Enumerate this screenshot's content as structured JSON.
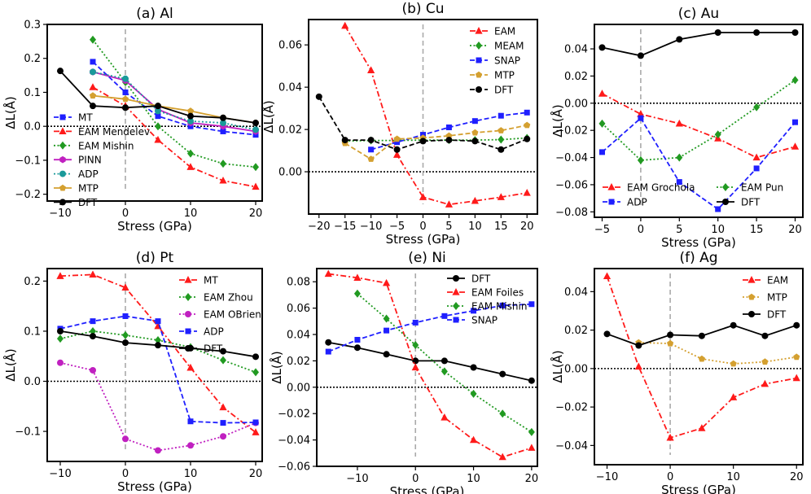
{
  "chart_data": [
    {
      "type": "line",
      "title": "(a) Al",
      "xlabel": "Stress (GPa)",
      "ylabel": "ΔL(Å)",
      "xlim": [
        -12,
        21
      ],
      "ylim": [
        -0.22,
        0.3
      ],
      "xticks": [
        -10,
        0,
        10,
        20
      ],
      "xtick_labels": [
        "−10",
        "0",
        "10",
        "20"
      ],
      "yticks": [
        -0.2,
        -0.1,
        0.0,
        0.1,
        0.2,
        0.3
      ],
      "ytick_labels": [
        "−0.2",
        "−0.1",
        "0.0",
        "0.1",
        "0.2",
        "0.3"
      ],
      "legend_position": "lower-left",
      "series": [
        {
          "name": "MT",
          "color": "#1f1fff",
          "marker": "square",
          "dash": "dash",
          "x": [
            -5,
            0,
            5,
            10,
            15,
            20
          ],
          "y": [
            0.19,
            0.1,
            0.03,
            0.0,
            -0.015,
            -0.025
          ]
        },
        {
          "name": "EAM Mendelev",
          "color": "#ff1a1a",
          "marker": "triangle",
          "dash": "dashdot",
          "x": [
            -5,
            0,
            5,
            10,
            15,
            20
          ],
          "y": [
            0.115,
            0.06,
            -0.04,
            -0.12,
            -0.16,
            -0.178
          ]
        },
        {
          "name": "EAM Mishin",
          "color": "#219a21",
          "marker": "diamond",
          "dash": "dot",
          "x": [
            -5,
            0,
            5,
            10,
            15,
            20
          ],
          "y": [
            0.255,
            0.13,
            0.0,
            -0.08,
            -0.11,
            -0.12
          ]
        },
        {
          "name": "PINN",
          "color": "#c020c0",
          "marker": "hexagon",
          "dash": "solid",
          "x": [
            -5,
            0,
            5,
            10,
            15,
            20
          ],
          "y": [
            0.16,
            0.135,
            0.05,
            0.01,
            0.0,
            -0.015
          ]
        },
        {
          "name": "ADP",
          "color": "#1a9a9a",
          "marker": "circle",
          "dash": "dot",
          "x": [
            -5,
            0,
            5,
            10,
            15,
            20
          ],
          "y": [
            0.16,
            0.14,
            0.045,
            0.015,
            0.01,
            -0.01
          ]
        },
        {
          "name": "MTP",
          "color": "#d4a030",
          "marker": "pentagon",
          "dash": "solid",
          "x": [
            -5,
            0,
            5,
            10,
            15,
            20
          ],
          "y": [
            0.09,
            0.08,
            0.06,
            0.045,
            0.025,
            0.01
          ]
        },
        {
          "name": "DFT",
          "color": "#000000",
          "marker": "circle",
          "dash": "solid",
          "x": [
            -10,
            -5,
            0,
            5,
            10,
            15,
            20
          ],
          "y": [
            0.163,
            0.06,
            0.055,
            0.06,
            0.03,
            0.025,
            0.01
          ]
        }
      ]
    },
    {
      "type": "line",
      "title": "(b) Cu",
      "xlabel": "Stress (GPa)",
      "ylabel": "ΔL(Å)",
      "xlim": [
        -22,
        22
      ],
      "ylim": [
        -0.02,
        0.072
      ],
      "xticks": [
        -20,
        -15,
        -10,
        -5,
        0,
        5,
        10,
        15,
        20
      ],
      "xtick_labels": [
        "−20",
        "−15",
        "−10",
        "−5",
        "0",
        "5",
        "10",
        "15",
        "20"
      ],
      "yticks": [
        0.0,
        0.02,
        0.04,
        0.06
      ],
      "ytick_labels": [
        "0.00",
        "0.02",
        "0.04",
        "0.06"
      ],
      "legend_position": "upper-right",
      "series": [
        {
          "name": "EAM",
          "color": "#ff1a1a",
          "marker": "triangle",
          "dash": "dashdot",
          "x": [
            -15,
            -10,
            -5,
            0,
            5,
            10,
            15,
            20
          ],
          "y": [
            0.069,
            0.048,
            0.008,
            -0.012,
            -0.0155,
            -0.0138,
            -0.012,
            -0.01
          ]
        },
        {
          "name": "MEAM",
          "color": "#219a21",
          "marker": "diamond",
          "dash": "dot",
          "x": [
            -15,
            -10,
            -5,
            0,
            5,
            10,
            15,
            20
          ],
          "y": [
            0.0145,
            0.0148,
            0.0148,
            0.015,
            0.015,
            0.015,
            0.0152,
            0.016
          ]
        },
        {
          "name": "SNAP",
          "color": "#1f1fff",
          "marker": "square",
          "dash": "dash",
          "x": [
            -10,
            -5,
            0,
            5,
            10,
            15,
            20
          ],
          "y": [
            0.0105,
            0.014,
            0.0175,
            0.021,
            0.024,
            0.0265,
            0.028
          ]
        },
        {
          "name": "MTP",
          "color": "#d4a030",
          "marker": "pentagon",
          "dash": "dash",
          "x": [
            -15,
            -10,
            -5,
            0,
            5,
            10,
            15,
            20
          ],
          "y": [
            0.0135,
            0.006,
            0.0155,
            0.016,
            0.017,
            0.0185,
            0.0195,
            0.022
          ]
        },
        {
          "name": "DFT",
          "color": "#000000",
          "marker": "circle",
          "dash": "dash",
          "x": [
            -20,
            -15,
            -10,
            -5,
            0,
            5,
            10,
            15,
            20
          ],
          "y": [
            0.0355,
            0.015,
            0.015,
            0.0105,
            0.0145,
            0.015,
            0.0145,
            0.0105,
            0.0155
          ]
        }
      ]
    },
    {
      "type": "line",
      "title": "(c) Au",
      "xlabel": "Stress (GPa)",
      "ylabel": "ΔL(Å)",
      "xlim": [
        -6,
        21
      ],
      "ylim": [
        -0.084,
        0.058
      ],
      "xticks": [
        -5,
        0,
        5,
        10,
        15,
        20
      ],
      "xtick_labels": [
        "−5",
        "0",
        "5",
        "10",
        "15",
        "20"
      ],
      "yticks": [
        -0.08,
        -0.06,
        -0.04,
        -0.02,
        0.0,
        0.02,
        0.04
      ],
      "ytick_labels": [
        "−0.08",
        "−0.06",
        "−0.04",
        "−0.02",
        "0.00",
        "0.02",
        "0.04"
      ],
      "legend_position": "lower-center",
      "series": [
        {
          "name": "EAM Grochola",
          "color": "#ff1a1a",
          "marker": "triangle",
          "dash": "dashdot",
          "x": [
            -5,
            0,
            5,
            10,
            15,
            20
          ],
          "y": [
            0.007,
            -0.008,
            -0.015,
            -0.026,
            -0.04,
            -0.032
          ]
        },
        {
          "name": "EAM Pun",
          "color": "#219a21",
          "marker": "diamond",
          "dash": "dot",
          "x": [
            -5,
            0,
            5,
            10,
            15,
            20
          ],
          "y": [
            -0.015,
            -0.042,
            -0.04,
            -0.023,
            -0.003,
            0.017
          ]
        },
        {
          "name": "ADP",
          "color": "#1f1fff",
          "marker": "square",
          "dash": "dash",
          "x": [
            -5,
            0,
            5,
            10,
            15,
            20
          ],
          "y": [
            -0.036,
            -0.011,
            -0.058,
            -0.078,
            -0.048,
            -0.014
          ]
        },
        {
          "name": "DFT",
          "color": "#000000",
          "marker": "circle",
          "dash": "solid",
          "x": [
            -5,
            0,
            5,
            10,
            15,
            20
          ],
          "y": [
            0.041,
            0.035,
            0.047,
            0.052,
            0.052,
            0.052
          ]
        }
      ]
    },
    {
      "type": "line",
      "title": "(d) Pt",
      "xlabel": "Stress (GPa)",
      "ylabel": "ΔL(Å)",
      "xlim": [
        -12,
        21
      ],
      "ylim": [
        -0.16,
        0.225
      ],
      "xticks": [
        -10,
        0,
        10,
        20
      ],
      "xtick_labels": [
        "−10",
        "0",
        "10",
        "20"
      ],
      "yticks": [
        -0.1,
        0.0,
        0.1,
        0.2
      ],
      "ytick_labels": [
        "−0.1",
        "0.0",
        "0.1",
        "0.2"
      ],
      "legend_position": "upper-right",
      "series": [
        {
          "name": "MT",
          "color": "#ff1a1a",
          "marker": "triangle",
          "dash": "dashdot",
          "x": [
            -10,
            -5,
            0,
            5,
            10,
            15,
            20
          ],
          "y": [
            0.21,
            0.213,
            0.187,
            0.11,
            0.027,
            -0.052,
            -0.102
          ]
        },
        {
          "name": "EAM Zhou",
          "color": "#219a21",
          "marker": "diamond",
          "dash": "dot",
          "x": [
            -10,
            -5,
            0,
            5,
            10,
            15,
            20
          ],
          "y": [
            0.085,
            0.1,
            0.092,
            0.082,
            0.068,
            0.042,
            0.018
          ]
        },
        {
          "name": "EAM OBrien",
          "color": "#c020c0",
          "marker": "circle",
          "dash": "dot",
          "x": [
            -10,
            -5,
            0,
            5,
            10,
            15,
            20
          ],
          "y": [
            0.037,
            0.022,
            -0.115,
            -0.138,
            -0.128,
            -0.11,
            -0.083
          ]
        },
        {
          "name": "ADP",
          "color": "#1f1fff",
          "marker": "square",
          "dash": "dash",
          "x": [
            -10,
            -5,
            0,
            5,
            10,
            15,
            20
          ],
          "y": [
            0.105,
            0.12,
            0.13,
            0.12,
            -0.08,
            -0.083,
            -0.082
          ]
        },
        {
          "name": "DFT",
          "color": "#000000",
          "marker": "circle",
          "dash": "solid",
          "x": [
            -10,
            -5,
            0,
            5,
            10,
            15,
            20
          ],
          "y": [
            0.1,
            0.09,
            0.077,
            0.072,
            0.066,
            0.06,
            0.049
          ]
        }
      ]
    },
    {
      "type": "line",
      "title": "(e) Ni",
      "xlabel": "Stress (GPa)",
      "ylabel": "ΔL(Å)",
      "xlim": [
        -17,
        21
      ],
      "ylim": [
        -0.06,
        0.09
      ],
      "xticks": [
        -10,
        0,
        10,
        20
      ],
      "xtick_labels": [
        "−10",
        "0",
        "10",
        "20"
      ],
      "yticks": [
        -0.06,
        -0.04,
        -0.02,
        0.0,
        0.02,
        0.04,
        0.06,
        0.08
      ],
      "ytick_labels": [
        "−0.06",
        "−0.04",
        "−0.02",
        "0.00",
        "0.02",
        "0.04",
        "0.06",
        "0.08"
      ],
      "legend_position": "upper-right",
      "series": [
        {
          "name": "DFT",
          "color": "#000000",
          "marker": "circle",
          "dash": "solid",
          "x": [
            -15,
            -10,
            -5,
            0,
            5,
            10,
            15,
            20
          ],
          "y": [
            0.034,
            0.03,
            0.025,
            0.02,
            0.02,
            0.015,
            0.01,
            0.005
          ]
        },
        {
          "name": "EAM Foiles",
          "color": "#ff1a1a",
          "marker": "triangle",
          "dash": "dashdot",
          "x": [
            -15,
            -10,
            -5,
            0,
            5,
            10,
            15,
            20
          ],
          "y": [
            0.086,
            0.083,
            0.079,
            0.015,
            -0.023,
            -0.04,
            -0.053,
            -0.046
          ]
        },
        {
          "name": "EAM Mishin",
          "color": "#219a21",
          "marker": "diamond",
          "dash": "dot",
          "x": [
            -10,
            -5,
            0,
            5,
            10,
            15,
            20
          ],
          "y": [
            0.071,
            0.052,
            0.032,
            0.012,
            -0.005,
            -0.02,
            -0.034
          ]
        },
        {
          "name": "SNAP",
          "color": "#1f1fff",
          "marker": "square",
          "dash": "dash",
          "x": [
            -15,
            -10,
            -5,
            0,
            5,
            10,
            15,
            20
          ],
          "y": [
            0.027,
            0.036,
            0.043,
            0.049,
            0.054,
            0.058,
            0.062,
            0.063
          ]
        }
      ]
    },
    {
      "type": "line",
      "title": "(f) Ag",
      "xlabel": "Stress (GPa)",
      "ylabel": "ΔL(Å)",
      "xlim": [
        -12,
        21
      ],
      "ylim": [
        -0.05,
        0.052
      ],
      "xticks": [
        -10,
        0,
        10,
        20
      ],
      "xtick_labels": [
        "−10",
        "0",
        "10",
        "20"
      ],
      "yticks": [
        -0.04,
        -0.02,
        0.0,
        0.02,
        0.04
      ],
      "ytick_labels": [
        "−0.04",
        "−0.02",
        "0.00",
        "0.02",
        "0.04"
      ],
      "legend_position": "upper-right",
      "series": [
        {
          "name": "EAM",
          "color": "#ff1a1a",
          "marker": "triangle",
          "dash": "dashdot",
          "x": [
            -10,
            -5,
            0,
            5,
            10,
            15,
            20
          ],
          "y": [
            0.048,
            0.001,
            -0.036,
            -0.031,
            -0.015,
            -0.008,
            -0.005
          ]
        },
        {
          "name": "MTP",
          "color": "#d4a030",
          "marker": "pentagon",
          "dash": "dot",
          "x": [
            -5,
            0,
            5,
            10,
            15,
            20
          ],
          "y": [
            0.0135,
            0.013,
            0.005,
            0.0025,
            0.0035,
            0.006
          ]
        },
        {
          "name": "DFT",
          "color": "#000000",
          "marker": "circle",
          "dash": "solid",
          "x": [
            -10,
            -5,
            0,
            5,
            10,
            15,
            20
          ],
          "y": [
            0.018,
            0.012,
            0.0175,
            0.017,
            0.0225,
            0.017,
            0.0225
          ]
        }
      ]
    }
  ]
}
